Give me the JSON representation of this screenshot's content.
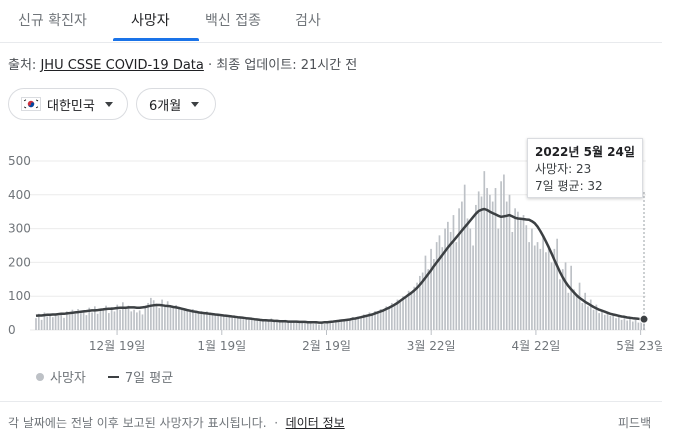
{
  "tabs": [
    {
      "label": "신규 확진자",
      "active": false
    },
    {
      "label": "사망자",
      "active": true
    },
    {
      "label": "백신 접종",
      "active": false
    },
    {
      "label": "검사",
      "active": false
    }
  ],
  "source": {
    "prefix": "출처:",
    "link": "JHU CSSE COVID-19 Data",
    "separator": "·",
    "updated": "최종 업데이트: 21시간 전"
  },
  "filters": {
    "region": "대한민국",
    "period": "6개월"
  },
  "tooltip": {
    "date": "2022년 5월 24일",
    "deaths": "사망자: 23",
    "avg": "7일 평균: 32"
  },
  "legend": {
    "deaths": "사망자",
    "avg": "7일 평균"
  },
  "footer": {
    "note": "각 날짜에는 전날 이후 보고된 사망자가 표시됩니다.",
    "separator": "·",
    "data_info": "데이터 정보",
    "feedback": "피드백"
  },
  "colors": {
    "bar": "#bdc1c6",
    "line": "#3c4043",
    "accent": "#1a73e8"
  },
  "chart_data": {
    "type": "bar",
    "title": "",
    "xlabel": "",
    "ylabel": "",
    "ylim": [
      0,
      500
    ],
    "yticks": [
      0,
      100,
      200,
      300,
      400,
      500
    ],
    "x_tick_labels": [
      "12월 19일",
      "1월 19일",
      "2월 19일",
      "3월 22일",
      "4월 22일",
      "5월 23일"
    ],
    "x_start": "2021-11-25",
    "x_end": "2022-05-24",
    "grid": true,
    "legend_position": "bottom-left",
    "series": [
      {
        "name": "사망자",
        "kind": "bar",
        "color": "#bdc1c6",
        "values": [
          35,
          48,
          30,
          52,
          40,
          44,
          38,
          46,
          42,
          50,
          36,
          55,
          45,
          60,
          48,
          62,
          50,
          58,
          44,
          66,
          52,
          70,
          48,
          64,
          58,
          72,
          50,
          68,
          55,
          75,
          60,
          82,
          66,
          72,
          55,
          60,
          52,
          58,
          46,
          70,
          80,
          95,
          88,
          78,
          65,
          90,
          72,
          85,
          70,
          68,
          74,
          66,
          60,
          62,
          58,
          54,
          62,
          55,
          50,
          56,
          48,
          55,
          52,
          50,
          46,
          44,
          40,
          45,
          38,
          42,
          36,
          40,
          35,
          38,
          32,
          38,
          30,
          34,
          28,
          32,
          30,
          26,
          30,
          28,
          34,
          26,
          30,
          24,
          28,
          30,
          22,
          26,
          24,
          28,
          22,
          26,
          20,
          24,
          22,
          18,
          20,
          16,
          22,
          18,
          20,
          24,
          20,
          26,
          24,
          30,
          28,
          34,
          30,
          38,
          32,
          40,
          36,
          46,
          42,
          52,
          48,
          56,
          50,
          62,
          58,
          70,
          66,
          80,
          76,
          90,
          84,
          100,
          94,
          116,
          108,
          128,
          140,
          160,
          170,
          220,
          180,
          240,
          210,
          260,
          280,
          245,
          300,
          320,
          290,
          340,
          260,
          360,
          380,
          430,
          330,
          300,
          250,
          370,
          410,
          395,
          470,
          420,
          400,
          380,
          420,
          300,
          440,
          460,
          380,
          400,
          290,
          360,
          350,
          330,
          340,
          310,
          260,
          300,
          250,
          260,
          240,
          280,
          230,
          250,
          200,
          240,
          270,
          150,
          180,
          200,
          110,
          190,
          120,
          100,
          140,
          80,
          110,
          70,
          90,
          60,
          75,
          50,
          60,
          45,
          55,
          42,
          48,
          35,
          45,
          30,
          40,
          28,
          36,
          25,
          30,
          22,
          26,
          23
        ]
      },
      {
        "name": "7일 평균",
        "kind": "line",
        "color": "#3c4043",
        "values": [
          42,
          43,
          43,
          44,
          45,
          45,
          46,
          46,
          47,
          48,
          48,
          49,
          50,
          51,
          52,
          53,
          54,
          55,
          56,
          57,
          58,
          58,
          59,
          60,
          61,
          62,
          63,
          63,
          64,
          65,
          66,
          66,
          66,
          67,
          67,
          67,
          66,
          66,
          67,
          68,
          70,
          72,
          73,
          74,
          74,
          73,
          72,
          71,
          70,
          68,
          67,
          65,
          63,
          61,
          59,
          57,
          55,
          54,
          52,
          51,
          50,
          49,
          48,
          47,
          46,
          45,
          44,
          43,
          42,
          41,
          40,
          39,
          38,
          37,
          36,
          35,
          34,
          33,
          32,
          31,
          30,
          29,
          29,
          28,
          28,
          27,
          27,
          26,
          26,
          26,
          25,
          25,
          25,
          25,
          24,
          24,
          24,
          23,
          23,
          23,
          23,
          22,
          22,
          23,
          23,
          24,
          25,
          26,
          27,
          28,
          29,
          30,
          31,
          33,
          34,
          36,
          38,
          40,
          42,
          44,
          46,
          49,
          52,
          55,
          58,
          62,
          66,
          70,
          75,
          80,
          86,
          92,
          98,
          104,
          110,
          117,
          125,
          134,
          144,
          155,
          166,
          177,
          189,
          200,
          211,
          222,
          233,
          244,
          254,
          264,
          274,
          284,
          294,
          304,
          314,
          324,
          334,
          344,
          352,
          356,
          358,
          355,
          350,
          346,
          342,
          338,
          335,
          336,
          338,
          340,
          336,
          332,
          330,
          329,
          328,
          327,
          326,
          322,
          316,
          306,
          293,
          278,
          262,
          245,
          227,
          208,
          190,
          172,
          156,
          142,
          130,
          120,
          111,
          102,
          95,
          89,
          83,
          78,
          73,
          68,
          64,
          60,
          57,
          54,
          51,
          48,
          46,
          44,
          42,
          40,
          39,
          37,
          36,
          35,
          34,
          33,
          32,
          32
        ]
      }
    ]
  }
}
